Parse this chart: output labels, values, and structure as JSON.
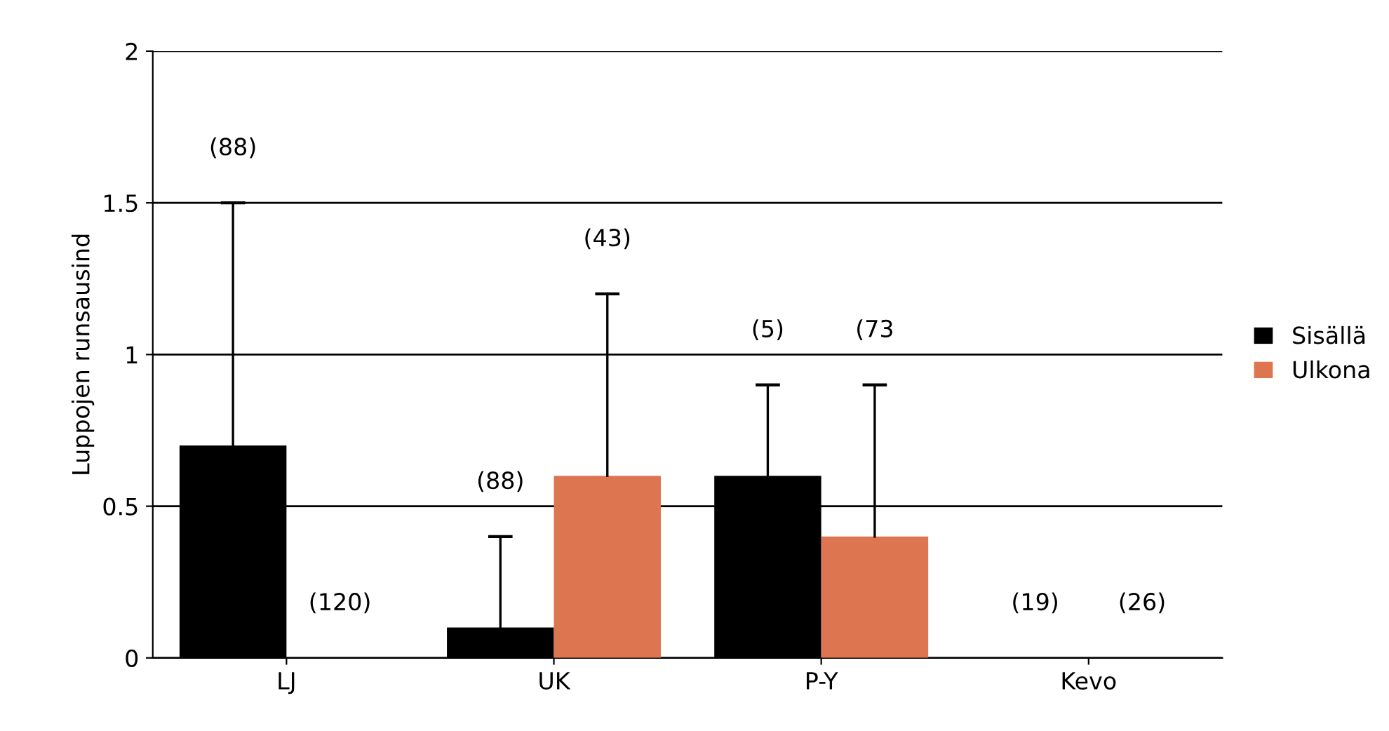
{
  "chart_data": {
    "type": "bar",
    "ylabel": "Luppojen runsausind",
    "categories": [
      "LJ",
      "UK",
      "P-Y",
      "Kevo"
    ],
    "series": [
      {
        "name": "Sisällä",
        "color": "#000000",
        "values": [
          0.7,
          0.1,
          0.6,
          0
        ],
        "errors": [
          [
            0.7,
            1.5
          ],
          [
            0.1,
            0.4
          ],
          [
            0.6,
            0.9
          ],
          null
        ]
      },
      {
        "name": "Ulkona",
        "color": "#dd7550",
        "values": [
          0,
          0.6,
          0.4,
          0
        ],
        "errors": [
          null,
          [
            0.6,
            1.2
          ],
          [
            0.4,
            0.9
          ],
          null
        ]
      }
    ],
    "annotations": [
      "(88)",
      "(120)",
      "(88)",
      "(43)",
      "(5)",
      "(73",
      "(19)",
      "(26)"
    ],
    "ylim": [
      0,
      2
    ],
    "yticks": [
      0,
      0.5,
      1,
      1.5,
      2
    ],
    "grid": "y",
    "legend": "right"
  }
}
